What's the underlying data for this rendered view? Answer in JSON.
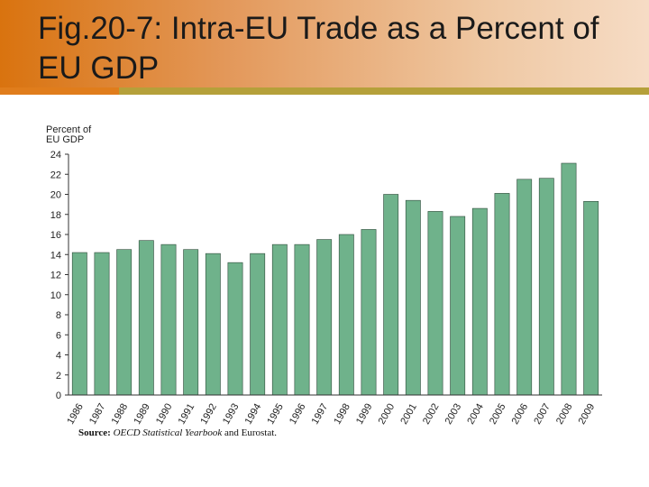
{
  "slide": {
    "title": "Fig.20-7: Intra-EU Trade as a Percent of EU GDP",
    "source_label": "Source:",
    "source_italic": "OECD Statistical Yearbook",
    "source_rest": "and Eurostat."
  },
  "colors": {
    "bar": "#6fb28b",
    "bar_stroke": "#2f4a3a",
    "axis": "#333333",
    "title_band_start": "#d9730f",
    "accent_olive": "#b5a03a"
  },
  "chart_data": {
    "type": "bar",
    "title": "",
    "ylabel_lines": [
      "Percent of",
      "EU GDP"
    ],
    "xlabel": "",
    "ylim": [
      0,
      24
    ],
    "yticks": [
      0,
      2,
      4,
      6,
      8,
      10,
      12,
      14,
      16,
      18,
      20,
      22,
      24
    ],
    "grid": false,
    "categories": [
      "1986",
      "1987",
      "1988",
      "1989",
      "1990",
      "1991",
      "1992",
      "1993",
      "1994",
      "1995",
      "1996",
      "1997",
      "1998",
      "1999",
      "2000",
      "2001",
      "2002",
      "2003",
      "2004",
      "2005",
      "2006",
      "2007",
      "2008",
      "2009"
    ],
    "values": [
      14.2,
      14.2,
      14.5,
      15.4,
      15.0,
      14.5,
      14.1,
      13.2,
      14.1,
      15.0,
      15.0,
      15.5,
      16.0,
      16.5,
      20.0,
      19.4,
      18.3,
      17.8,
      18.6,
      20.1,
      21.5,
      21.6,
      23.1,
      19.3
    ]
  }
}
